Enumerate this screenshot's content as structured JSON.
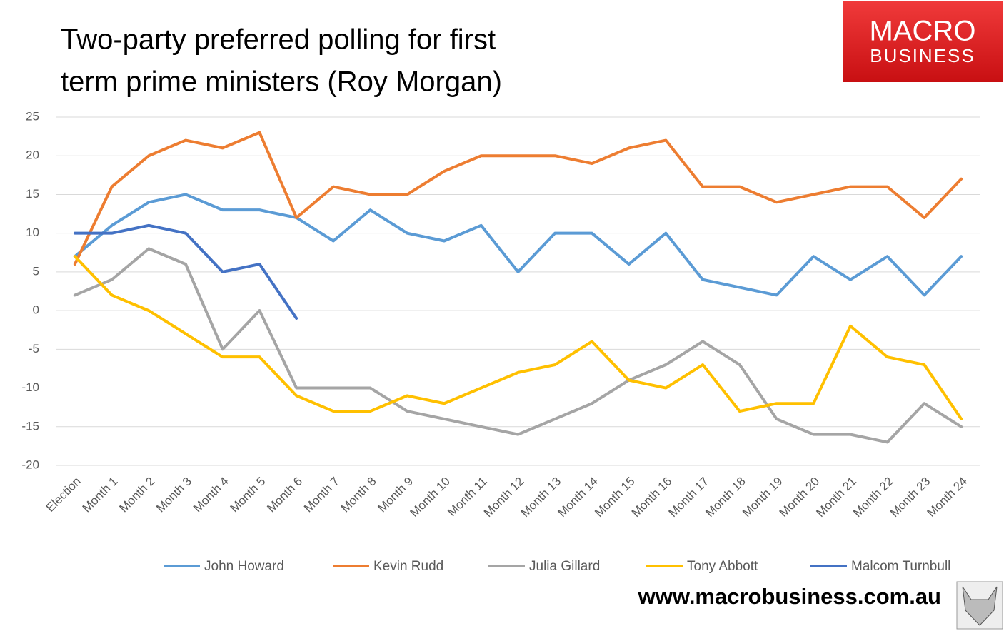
{
  "chart_data": {
    "type": "line",
    "title": [
      "Two-party preferred polling for first",
      "term prime ministers (Roy Morgan)"
    ],
    "logo": {
      "line1": "MACRO",
      "line2": "BUSINESS"
    },
    "website": "www.macrobusiness.com.au",
    "categories": [
      "Election",
      "Month 1",
      "Month 2",
      "Month 3",
      "Month 4",
      "Month 5",
      "Month 6",
      "Month 7",
      "Month 8",
      "Month 9",
      "Month 10",
      "Month 11",
      "Month 12",
      "Month 13",
      "Month 14",
      "Month 15",
      "Month 16",
      "Month 17",
      "Month 18",
      "Month 19",
      "Month 20",
      "Month 21",
      "Month 22",
      "Month 23",
      "Month 24"
    ],
    "series": [
      {
        "name": "John Howard",
        "color": "#5b9bd5",
        "values": [
          7,
          11,
          14,
          15,
          13,
          13,
          12,
          9,
          13,
          10,
          9,
          11,
          5,
          10,
          10,
          6,
          10,
          4,
          3,
          2,
          7,
          4,
          7,
          2,
          7
        ]
      },
      {
        "name": "Kevin Rudd",
        "color": "#ed7d31",
        "values": [
          6,
          16,
          20,
          22,
          21,
          23,
          12,
          16,
          15,
          15,
          18,
          20,
          20,
          20,
          19,
          21,
          22,
          16,
          16,
          14,
          15,
          16,
          16,
          12,
          17
        ]
      },
      {
        "name": "Julia Gillard",
        "color": "#a5a5a5",
        "values": [
          2,
          4,
          8,
          6,
          -5,
          0,
          -10,
          -10,
          -10,
          -13,
          -14,
          -15,
          -16,
          -14,
          -12,
          -9,
          -7,
          -4,
          -7,
          -14,
          -16,
          -16,
          -17,
          -12,
          -15
        ]
      },
      {
        "name": "Tony Abbott",
        "color": "#ffc000",
        "values": [
          7,
          2,
          0,
          -3,
          -6,
          -6,
          -11,
          -13,
          -13,
          -11,
          -12,
          -10,
          -8,
          -7,
          -4,
          -9,
          -10,
          -7,
          -13,
          -12,
          -12,
          -2,
          -6,
          -7,
          -14
        ]
      },
      {
        "name": "Malcom Turnbull",
        "color": "#4472c4",
        "values": [
          10,
          10,
          11,
          10,
          5,
          6,
          -1,
          null,
          null,
          null,
          null,
          null,
          null,
          null,
          null,
          null,
          null,
          null,
          null,
          null,
          null,
          null,
          null,
          null,
          null
        ]
      }
    ],
    "ylim": [
      -20,
      25
    ],
    "yticks": [
      -20,
      -15,
      -10,
      -5,
      0,
      5,
      10,
      15,
      20,
      25
    ],
    "grid": true,
    "legend": "bottom"
  }
}
